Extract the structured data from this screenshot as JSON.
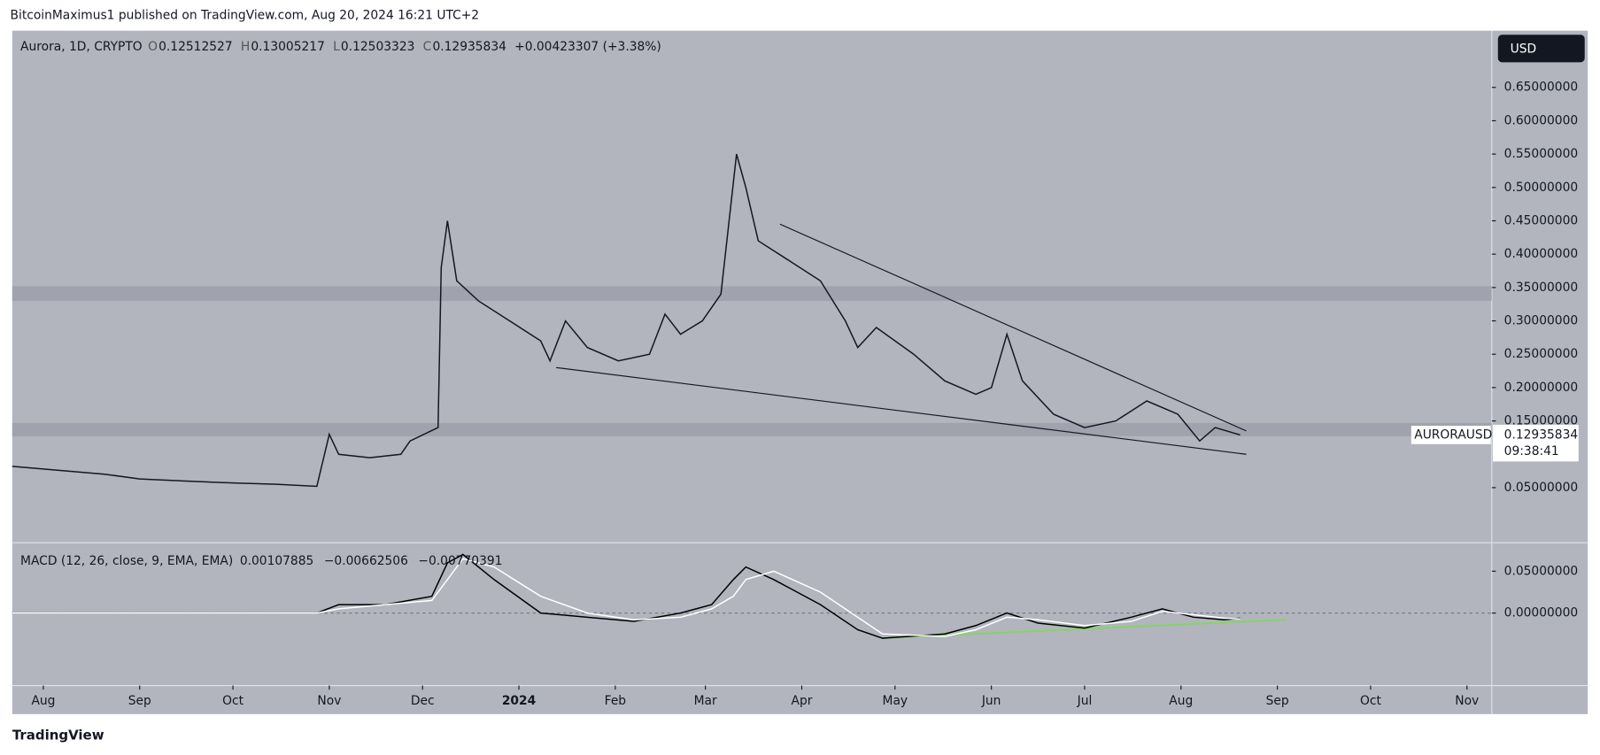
{
  "header": {
    "publisher": "BitcoinMaximus1 published on TradingView.com, Aug 20, 2024 16:21 UTC+2",
    "brand": "TradingView"
  },
  "chart_data": [
    {
      "type": "line",
      "title": "Aurora, 1D, CRYPTO",
      "ohlc": {
        "o_label": "O",
        "o": "0.12512527",
        "h_label": "H",
        "h": "0.13005217",
        "l_label": "L",
        "l": "0.12503323",
        "c_label": "C",
        "c": "0.12935834",
        "change": "+0.00423307 (+3.38%)"
      },
      "currency": "USD",
      "symbol": "AURORAUSD",
      "last_price": "0.12935834",
      "countdown": "09:38:41",
      "xlim": [
        -10,
        466
      ],
      "xticks": [
        {
          "value": 0,
          "label": "Aug"
        },
        {
          "value": 31,
          "label": "Sep"
        },
        {
          "value": 61,
          "label": "Oct"
        },
        {
          "value": 92,
          "label": "Nov"
        },
        {
          "value": 122,
          "label": "Dec"
        },
        {
          "value": 153,
          "label": "2024"
        },
        {
          "value": 184,
          "label": "Feb"
        },
        {
          "value": 213,
          "label": "Mar"
        },
        {
          "value": 244,
          "label": "Apr"
        },
        {
          "value": 274,
          "label": "May"
        },
        {
          "value": 305,
          "label": "Jun"
        },
        {
          "value": 335,
          "label": "Jul"
        },
        {
          "value": 366,
          "label": "Aug"
        },
        {
          "value": 397,
          "label": "Sep"
        },
        {
          "value": 427,
          "label": "Oct"
        },
        {
          "value": 458,
          "label": "Nov"
        }
      ],
      "ylim": [
        -0.0326,
        0.735
      ],
      "yticks": [
        {
          "value": 0.65,
          "label": "0.65000000"
        },
        {
          "value": 0.6,
          "label": "0.60000000"
        },
        {
          "value": 0.55,
          "label": "0.55000000"
        },
        {
          "value": 0.5,
          "label": "0.50000000"
        },
        {
          "value": 0.45,
          "label": "0.45000000"
        },
        {
          "value": 0.4,
          "label": "0.40000000"
        },
        {
          "value": 0.35,
          "label": "0.35000000"
        },
        {
          "value": 0.3,
          "label": "0.30000000"
        },
        {
          "value": 0.25,
          "label": "0.25000000"
        },
        {
          "value": 0.2,
          "label": "0.20000000"
        },
        {
          "value": 0.15,
          "label": "0.15000000"
        },
        {
          "value": 0.05,
          "label": "0.05000000"
        }
      ],
      "x": [
        -10,
        0,
        10,
        20,
        31,
        45,
        61,
        75,
        88,
        92,
        95,
        105,
        115,
        118,
        127,
        128,
        130,
        133,
        140,
        150,
        160,
        163,
        168,
        175,
        185,
        195,
        200,
        205,
        212,
        218,
        223,
        226,
        230,
        240,
        250,
        258,
        262,
        268,
        280,
        290,
        300,
        305,
        310,
        315,
        325,
        335,
        345,
        355,
        365,
        372,
        377,
        385
      ],
      "series": [
        {
          "name": "AURORAUSD",
          "color": "#131722",
          "values": [
            0.082,
            0.078,
            0.074,
            0.07,
            0.063,
            0.06,
            0.057,
            0.055,
            0.052,
            0.13,
            0.1,
            0.095,
            0.1,
            0.12,
            0.14,
            0.38,
            0.45,
            0.36,
            0.33,
            0.3,
            0.27,
            0.24,
            0.3,
            0.26,
            0.24,
            0.25,
            0.31,
            0.28,
            0.3,
            0.34,
            0.55,
            0.5,
            0.42,
            0.39,
            0.36,
            0.3,
            0.26,
            0.29,
            0.25,
            0.21,
            0.19,
            0.2,
            0.28,
            0.21,
            0.16,
            0.14,
            0.15,
            0.18,
            0.16,
            0.12,
            0.14,
            0.129
          ]
        }
      ],
      "zones": [
        [
          0.33,
          0.352
        ],
        [
          0.127,
          0.147
        ]
      ],
      "trendlines": [
        {
          "x": [
            237,
            387
          ],
          "y": [
            0.445,
            0.135
          ]
        },
        {
          "x": [
            165,
            387
          ],
          "y": [
            0.23,
            0.1
          ]
        }
      ]
    },
    {
      "type": "line",
      "title": "MACD (12, 26, close, 9, EMA, EMA)",
      "readouts": [
        "0.00107885",
        "−0.00662506",
        "−0.00770391"
      ],
      "xlim": [
        -10,
        466
      ],
      "ylim": [
        -0.0866,
        0.084
      ],
      "yticks": [
        {
          "value": 0.05,
          "label": "0.05000000"
        },
        {
          "value": 0,
          "label": "0.00000000"
        }
      ],
      "x": [
        -10,
        88,
        95,
        110,
        125,
        130,
        135,
        145,
        160,
        175,
        190,
        205,
        215,
        222,
        226,
        235,
        250,
        262,
        270,
        290,
        300,
        310,
        320,
        335,
        350,
        360,
        370,
        380,
        385
      ],
      "series": [
        {
          "name": "MACD",
          "color": "#000000",
          "values": [
            0,
            0,
            0.01,
            0.01,
            0.02,
            0.06,
            0.07,
            0.04,
            0,
            -0.005,
            -0.01,
            0,
            0.01,
            0.04,
            0.055,
            0.04,
            0.01,
            -0.02,
            -0.03,
            -0.025,
            -0.015,
            0,
            -0.012,
            -0.018,
            -0.005,
            0.005,
            -0.005,
            -0.008,
            -0.006
          ]
        },
        {
          "name": "Signal",
          "color": "#ffffff",
          "values": [
            0,
            0,
            0.005,
            0.01,
            0.015,
            0.04,
            0.065,
            0.055,
            0.02,
            0,
            -0.008,
            -0.005,
            0.005,
            0.02,
            0.04,
            0.05,
            0.025,
            -0.005,
            -0.025,
            -0.028,
            -0.02,
            -0.005,
            -0.008,
            -0.015,
            -0.01,
            0.002,
            -0.002,
            -0.006,
            -0.007
          ]
        }
      ],
      "trendlines": [
        {
          "x": [
            270,
            400
          ],
          "y": [
            -0.03,
            -0.008
          ]
        }
      ]
    }
  ]
}
